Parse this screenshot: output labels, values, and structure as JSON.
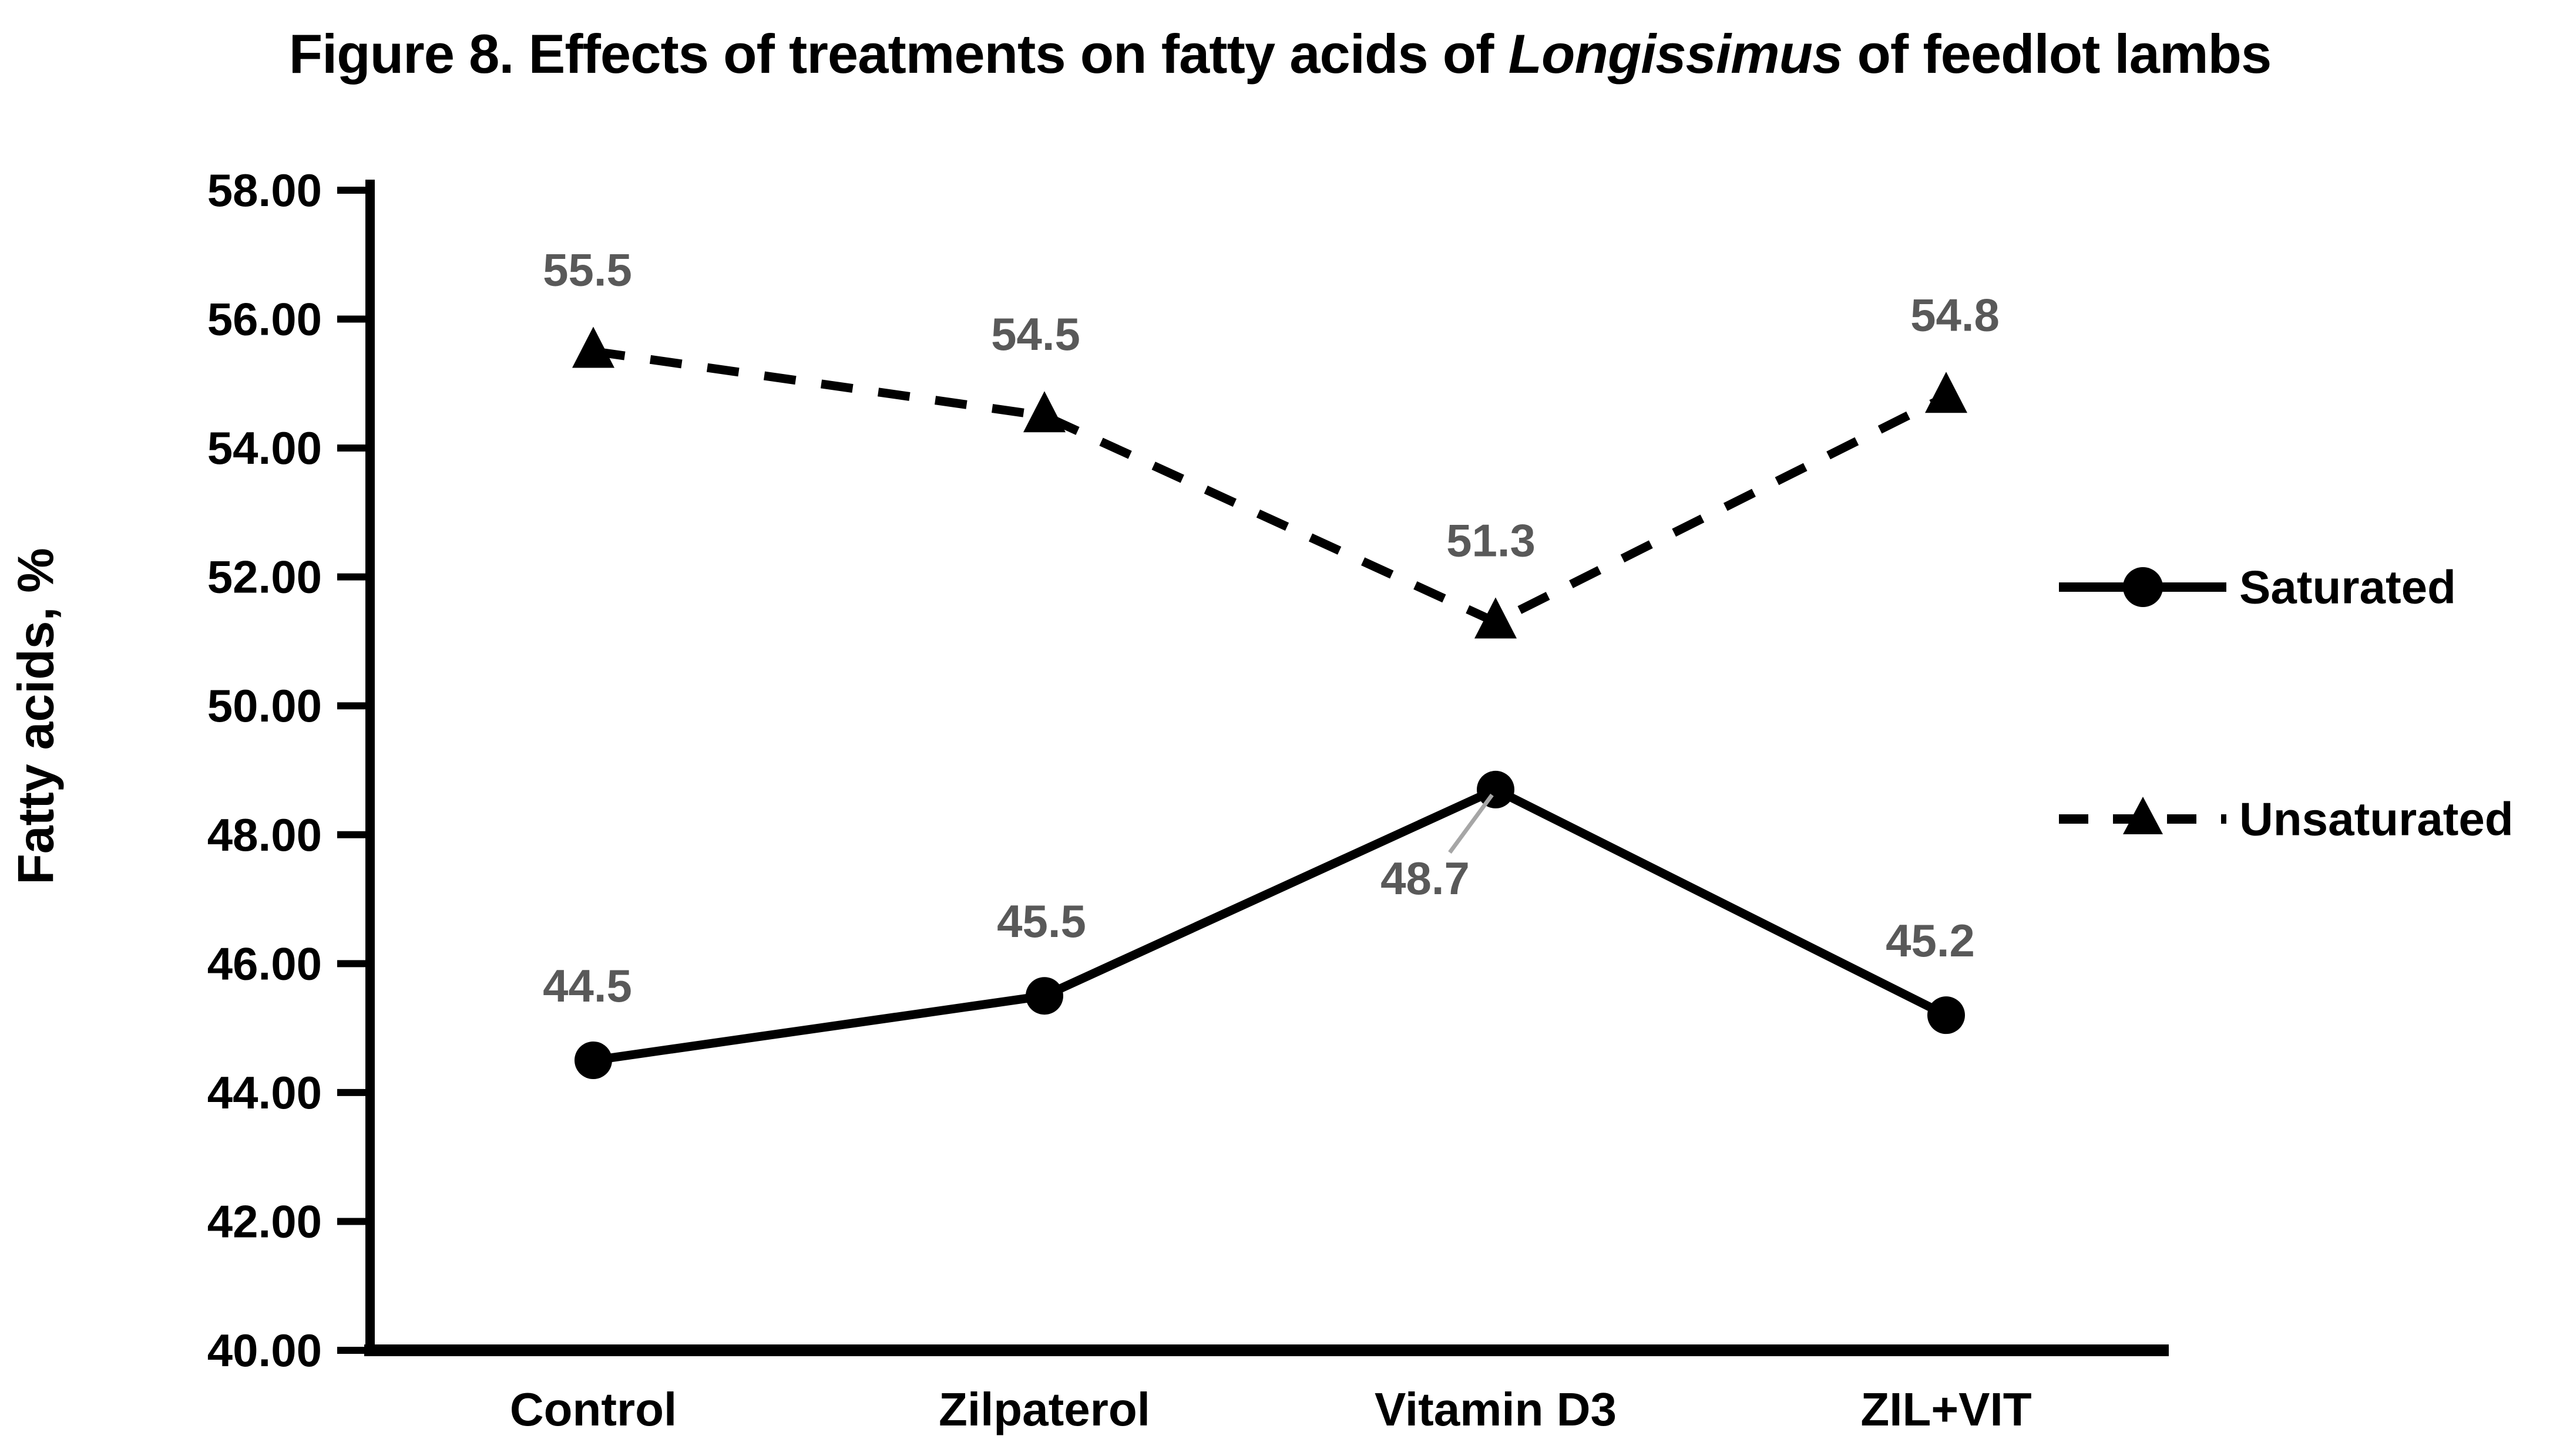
{
  "title": {
    "prefix": "Figure 8. Effects of treatments on fatty acids of ",
    "italic": "Longissimus",
    "suffix": " of feedlot lambs"
  },
  "y_axis": {
    "title": "Fatty acids, %",
    "min": 40,
    "max": 58,
    "step": 2,
    "tick_format": "two-decimal"
  },
  "colors": {
    "series": "#000000",
    "axis": "#000000",
    "data_label": "#595959",
    "leader_line": "#a6a6a6",
    "background": "#ffffff"
  },
  "legend": {
    "position": "right",
    "items": [
      {
        "label": "Saturated",
        "marker": "circle",
        "line_style": "solid"
      },
      {
        "label": "Unsaturated",
        "marker": "triangle",
        "line_style": "dashed"
      }
    ]
  },
  "chart_data": {
    "type": "line",
    "title": "Figure 8. Effects of treatments on fatty acids of Longissimus of feedlot lambs",
    "categories": [
      "Control",
      "Zilpaterol",
      "Vitamin D3",
      "ZIL+VIT"
    ],
    "series": [
      {
        "name": "Saturated",
        "values": [
          44.5,
          45.5,
          48.7,
          45.2
        ],
        "data_labels": [
          "44.5",
          "45.5",
          "48.7",
          "45.2"
        ],
        "line_style": "solid",
        "marker": "circle"
      },
      {
        "name": "Unsaturated",
        "values": [
          55.5,
          54.5,
          51.3,
          54.8
        ],
        "data_labels": [
          "55.5",
          "54.5",
          "51.3",
          "54.8"
        ],
        "line_style": "dashed",
        "marker": "triangle"
      }
    ],
    "xlabel": "",
    "ylabel": "Fatty acids, %",
    "ylim": [
      40,
      58
    ],
    "y_ticks": [
      58,
      56,
      54,
      52,
      50,
      48,
      46,
      44,
      42,
      40
    ],
    "grid": false,
    "legend_position": "right",
    "annotations": {
      "callout_point": "Saturated @ Vitamin D3",
      "callout_label": "48.7"
    }
  }
}
